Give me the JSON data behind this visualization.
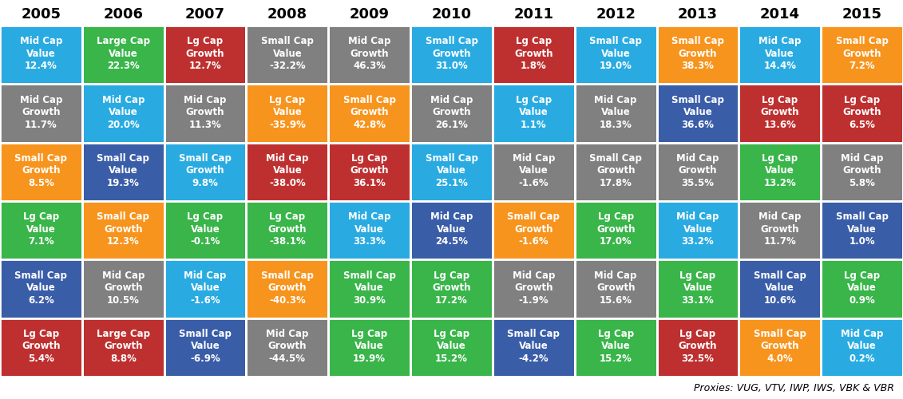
{
  "years": [
    "2005",
    "2006",
    "2007",
    "2008",
    "2009",
    "2010",
    "2011",
    "2012",
    "2013",
    "2014",
    "2015"
  ],
  "rows": 6,
  "cols": 11,
  "cells": [
    [
      {
        "label": "Mid Cap\nValue",
        "value": "12.4%",
        "color": "#29ABE2"
      },
      {
        "label": "Large Cap\nValue",
        "value": "22.3%",
        "color": "#39B54A"
      },
      {
        "label": "Lg Cap\nGrowth",
        "value": "12.7%",
        "color": "#BE3030"
      },
      {
        "label": "Small Cap\nValue",
        "value": "-32.2%",
        "color": "#808080"
      },
      {
        "label": "Mid Cap\nGrowth",
        "value": "46.3%",
        "color": "#808080"
      },
      {
        "label": "Small Cap\nGrowth",
        "value": "31.0%",
        "color": "#29ABE2"
      },
      {
        "label": "Lg Cap\nGrowth",
        "value": "1.8%",
        "color": "#BE3030"
      },
      {
        "label": "Small Cap\nValue",
        "value": "19.0%",
        "color": "#29ABE2"
      },
      {
        "label": "Small Cap\nGrowth",
        "value": "38.3%",
        "color": "#F7941D"
      },
      {
        "label": "Mid Cap\nValue",
        "value": "14.4%",
        "color": "#29ABE2"
      },
      {
        "label": "Small Cap\nGrowth",
        "value": "7.2%",
        "color": "#F7941D"
      }
    ],
    [
      {
        "label": "Mid Cap\nGrowth",
        "value": "11.7%",
        "color": "#808080"
      },
      {
        "label": "Mid Cap\nValue",
        "value": "20.0%",
        "color": "#29ABE2"
      },
      {
        "label": "Mid Cap\nGrowth",
        "value": "11.3%",
        "color": "#808080"
      },
      {
        "label": "Lg Cap\nValue",
        "value": "-35.9%",
        "color": "#F7941D"
      },
      {
        "label": "Small Cap\nGrowth",
        "value": "42.8%",
        "color": "#F7941D"
      },
      {
        "label": "Mid Cap\nGrowth",
        "value": "26.1%",
        "color": "#808080"
      },
      {
        "label": "Lg Cap\nValue",
        "value": "1.1%",
        "color": "#29ABE2"
      },
      {
        "label": "Mid Cap\nValue",
        "value": "18.3%",
        "color": "#808080"
      },
      {
        "label": "Small Cap\nValue",
        "value": "36.6%",
        "color": "#3A5DA8"
      },
      {
        "label": "Lg Cap\nGrowth",
        "value": "13.6%",
        "color": "#BE3030"
      },
      {
        "label": "Lg Cap\nGrowth",
        "value": "6.5%",
        "color": "#BE3030"
      }
    ],
    [
      {
        "label": "Small Cap\nGrowth",
        "value": "8.5%",
        "color": "#F7941D"
      },
      {
        "label": "Small Cap\nValue",
        "value": "19.3%",
        "color": "#3A5DA8"
      },
      {
        "label": "Small Cap\nGrowth",
        "value": "9.8%",
        "color": "#29ABE2"
      },
      {
        "label": "Mid Cap\nValue",
        "value": "-38.0%",
        "color": "#BE3030"
      },
      {
        "label": "Lg Cap\nGrowth",
        "value": "36.1%",
        "color": "#BE3030"
      },
      {
        "label": "Small Cap\nValue",
        "value": "25.1%",
        "color": "#29ABE2"
      },
      {
        "label": "Mid Cap\nValue",
        "value": "-1.6%",
        "color": "#808080"
      },
      {
        "label": "Small Cap\nGrowth",
        "value": "17.8%",
        "color": "#808080"
      },
      {
        "label": "Mid Cap\nGrowth",
        "value": "35.5%",
        "color": "#808080"
      },
      {
        "label": "Lg Cap\nValue",
        "value": "13.2%",
        "color": "#39B54A"
      },
      {
        "label": "Mid Cap\nGrowth",
        "value": "5.8%",
        "color": "#808080"
      }
    ],
    [
      {
        "label": "Lg Cap\nValue",
        "value": "7.1%",
        "color": "#39B54A"
      },
      {
        "label": "Small Cap\nGrowth",
        "value": "12.3%",
        "color": "#F7941D"
      },
      {
        "label": "Lg Cap\nValue",
        "value": "-0.1%",
        "color": "#39B54A"
      },
      {
        "label": "Lg Cap\nGrowth",
        "value": "-38.1%",
        "color": "#39B54A"
      },
      {
        "label": "Mid Cap\nValue",
        "value": "33.3%",
        "color": "#29ABE2"
      },
      {
        "label": "Mid Cap\nValue",
        "value": "24.5%",
        "color": "#3A5DA8"
      },
      {
        "label": "Small Cap\nGrowth",
        "value": "-1.6%",
        "color": "#F7941D"
      },
      {
        "label": "Lg Cap\nGrowth",
        "value": "17.0%",
        "color": "#39B54A"
      },
      {
        "label": "Mid Cap\nValue",
        "value": "33.2%",
        "color": "#29ABE2"
      },
      {
        "label": "Mid Cap\nGrowth",
        "value": "11.7%",
        "color": "#808080"
      },
      {
        "label": "Small Cap\nValue",
        "value": "1.0%",
        "color": "#3A5DA8"
      }
    ],
    [
      {
        "label": "Small Cap\nValue",
        "value": "6.2%",
        "color": "#3A5DA8"
      },
      {
        "label": "Mid Cap\nGrowth",
        "value": "10.5%",
        "color": "#808080"
      },
      {
        "label": "Mid Cap\nValue",
        "value": "-1.6%",
        "color": "#29ABE2"
      },
      {
        "label": "Small Cap\nGrowth",
        "value": "-40.3%",
        "color": "#F7941D"
      },
      {
        "label": "Small Cap\nValue",
        "value": "30.9%",
        "color": "#39B54A"
      },
      {
        "label": "Lg Cap\nGrowth",
        "value": "17.2%",
        "color": "#39B54A"
      },
      {
        "label": "Mid Cap\nGrowth",
        "value": "-1.9%",
        "color": "#808080"
      },
      {
        "label": "Mid Cap\nGrowth",
        "value": "15.6%",
        "color": "#808080"
      },
      {
        "label": "Lg Cap\nValue",
        "value": "33.1%",
        "color": "#39B54A"
      },
      {
        "label": "Small Cap\nValue",
        "value": "10.6%",
        "color": "#3A5DA8"
      },
      {
        "label": "Lg Cap\nValue",
        "value": "0.9%",
        "color": "#39B54A"
      }
    ],
    [
      {
        "label": "Lg Cap\nGrowth",
        "value": "5.4%",
        "color": "#BE3030"
      },
      {
        "label": "Large Cap\nGrowth",
        "value": "8.8%",
        "color": "#BE3030"
      },
      {
        "label": "Small Cap\nValue",
        "value": "-6.9%",
        "color": "#3A5DA8"
      },
      {
        "label": "Mid Cap\nGrowth",
        "value": "-44.5%",
        "color": "#808080"
      },
      {
        "label": "Lg Cap\nValue",
        "value": "19.9%",
        "color": "#39B54A"
      },
      {
        "label": "Lg Cap\nValue",
        "value": "15.2%",
        "color": "#39B54A"
      },
      {
        "label": "Small Cap\nValue",
        "value": "-4.2%",
        "color": "#3A5DA8"
      },
      {
        "label": "Lg Cap\nValue",
        "value": "15.2%",
        "color": "#39B54A"
      },
      {
        "label": "Lg Cap\nGrowth",
        "value": "32.5%",
        "color": "#BE3030"
      },
      {
        "label": "Small Cap\nGrowth",
        "value": "4.0%",
        "color": "#F7941D"
      },
      {
        "label": "Mid Cap\nValue",
        "value": "0.2%",
        "color": "#29ABE2"
      }
    ]
  ],
  "footnote": "Proxies: VUG, VTV, IWP, IWS, VBK & VBR",
  "cell_text_color": "#FFFFFF",
  "background_color": "#FFFFFF",
  "border_color": "#FFFFFF",
  "header_fontsize": 13,
  "cell_fontsize": 8.5,
  "value_fontsize": 9.5,
  "footnote_fontsize": 9
}
